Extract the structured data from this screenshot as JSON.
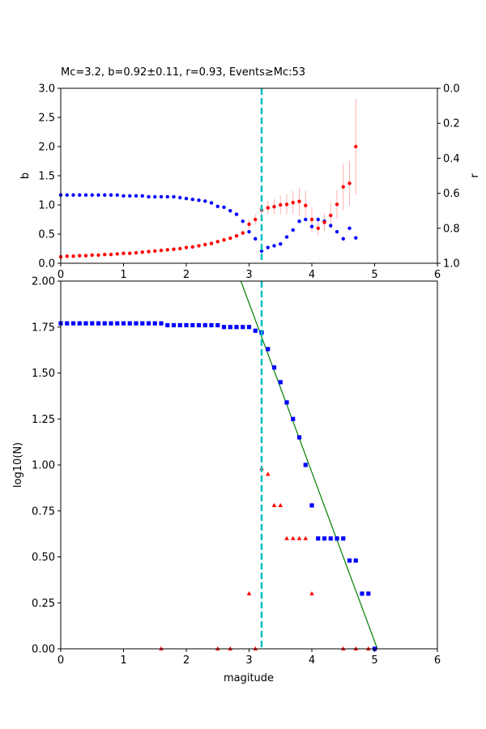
{
  "chart_data": [
    {
      "type": "scatter",
      "title": "Mc=3.2, b=0.92±0.11, r=0.93, Events≥Mc:53",
      "xlabel": "",
      "ylabel": "b",
      "ylabel_right": "r",
      "xlim": [
        0,
        6
      ],
      "ylim": [
        0,
        3
      ],
      "ylim_right": [
        1,
        0
      ],
      "xticks": [
        "0",
        "1",
        "2",
        "3",
        "4",
        "5",
        "6"
      ],
      "yticks": [
        "0.0",
        "0.5",
        "1.0",
        "1.5",
        "2.0",
        "2.5",
        "3.0"
      ],
      "yticks_right": [
        "1.0",
        "0.8",
        "0.6",
        "0.4",
        "0.2",
        "0.0"
      ],
      "mc_line": 3.2,
      "colors": {
        "b": "#ff0000",
        "r": "#0000ff",
        "errorbar": "#ffb0b0",
        "mc": "#00bfbf"
      },
      "series": [
        {
          "name": "",
          "axis": "left",
          "x": [
            0.0,
            0.1,
            0.2,
            0.3,
            0.4,
            0.5,
            0.6,
            0.7,
            0.8,
            0.9,
            1.0,
            1.1,
            1.2,
            1.3,
            1.4,
            1.5,
            1.6,
            1.7,
            1.8,
            1.9,
            2.0,
            2.1,
            2.2,
            2.3,
            2.4,
            2.5,
            2.6,
            2.7,
            2.8,
            2.9,
            3.0,
            3.1,
            3.2,
            3.3,
            3.4,
            3.5,
            3.6,
            3.7,
            3.8,
            3.9,
            4.0,
            4.1,
            4.2,
            4.3,
            4.4,
            4.5,
            4.6,
            4.7
          ],
          "y": [
            0.11,
            0.12,
            0.12,
            0.13,
            0.13,
            0.14,
            0.14,
            0.15,
            0.15,
            0.16,
            0.17,
            0.17,
            0.18,
            0.19,
            0.2,
            0.21,
            0.22,
            0.23,
            0.24,
            0.25,
            0.27,
            0.28,
            0.3,
            0.32,
            0.34,
            0.37,
            0.4,
            0.43,
            0.47,
            0.52,
            0.67,
            0.75,
            0.91,
            0.95,
            0.97,
            1.0,
            1.01,
            1.04,
            1.06,
            0.99,
            0.75,
            0.6,
            0.7,
            0.82,
            1.01,
            1.31,
            1.37,
            2.0
          ],
          "err": [
            0.01,
            0.01,
            0.01,
            0.01,
            0.01,
            0.01,
            0.01,
            0.01,
            0.01,
            0.01,
            0.01,
            0.01,
            0.01,
            0.01,
            0.01,
            0.01,
            0.01,
            0.01,
            0.01,
            0.01,
            0.01,
            0.01,
            0.02,
            0.02,
            0.02,
            0.02,
            0.02,
            0.03,
            0.03,
            0.04,
            0.08,
            0.09,
            0.11,
            0.12,
            0.13,
            0.16,
            0.17,
            0.2,
            0.24,
            0.26,
            0.22,
            0.12,
            0.15,
            0.22,
            0.25,
            0.4,
            0.38,
            0.82
          ]
        },
        {
          "name": "",
          "axis": "right",
          "x": [
            0.0,
            0.1,
            0.2,
            0.3,
            0.4,
            0.5,
            0.6,
            0.7,
            0.8,
            0.9,
            1.0,
            1.1,
            1.2,
            1.3,
            1.4,
            1.5,
            1.6,
            1.7,
            1.8,
            1.9,
            2.0,
            2.1,
            2.2,
            2.3,
            2.4,
            2.5,
            2.6,
            2.7,
            2.8,
            2.9,
            3.0,
            3.1,
            3.2,
            3.3,
            3.4,
            3.5,
            3.6,
            3.7,
            3.8,
            3.9,
            4.0,
            4.1,
            4.2,
            4.3,
            4.4,
            4.5,
            4.6,
            4.7
          ],
          "y": [
            0.61,
            0.61,
            0.61,
            0.61,
            0.61,
            0.61,
            0.61,
            0.61,
            0.61,
            0.61,
            0.615,
            0.615,
            0.615,
            0.615,
            0.62,
            0.62,
            0.62,
            0.62,
            0.62,
            0.625,
            0.63,
            0.635,
            0.64,
            0.645,
            0.655,
            0.675,
            0.68,
            0.7,
            0.72,
            0.76,
            0.82,
            0.86,
            0.93,
            0.91,
            0.9,
            0.89,
            0.85,
            0.81,
            0.76,
            0.75,
            0.79,
            0.75,
            0.76,
            0.785,
            0.82,
            0.86,
            0.8,
            0.855
          ]
        }
      ]
    },
    {
      "type": "scatter",
      "title": "",
      "xlabel": "magitude",
      "ylabel": "log10(N)",
      "xlim": [
        0,
        6
      ],
      "ylim": [
        0,
        2
      ],
      "xticks": [
        "0",
        "1",
        "2",
        "3",
        "4",
        "5",
        "6"
      ],
      "yticks": [
        "0.00",
        "0.25",
        "0.50",
        "0.75",
        "1.00",
        "1.25",
        "1.50",
        "1.75",
        "2.00"
      ],
      "mc_line": 3.2,
      "fit_line": {
        "slope": -0.92,
        "intercept": 4.64
      },
      "colors": {
        "cumulative": "#0000ff",
        "noncumulative": "#ff0000",
        "fit": "#008000",
        "mc": "#00bfbf"
      },
      "series": [
        {
          "name": "",
          "marker": "square",
          "x": [
            0.0,
            0.1,
            0.2,
            0.3,
            0.4,
            0.5,
            0.6,
            0.7,
            0.8,
            0.9,
            1.0,
            1.1,
            1.2,
            1.3,
            1.4,
            1.5,
            1.6,
            1.7,
            1.8,
            1.9,
            2.0,
            2.1,
            2.2,
            2.3,
            2.4,
            2.5,
            2.6,
            2.7,
            2.8,
            2.9,
            3.0,
            3.1,
            3.2,
            3.3,
            3.4,
            3.5,
            3.6,
            3.7,
            3.8,
            3.9,
            4.0,
            4.1,
            4.2,
            4.3,
            4.4,
            4.5,
            4.6,
            4.7,
            4.8,
            4.9,
            5.0
          ],
          "y": [
            1.77,
            1.77,
            1.77,
            1.77,
            1.77,
            1.77,
            1.77,
            1.77,
            1.77,
            1.77,
            1.77,
            1.77,
            1.77,
            1.77,
            1.77,
            1.77,
            1.77,
            1.76,
            1.76,
            1.76,
            1.76,
            1.76,
            1.76,
            1.76,
            1.76,
            1.76,
            1.75,
            1.75,
            1.75,
            1.75,
            1.75,
            1.73,
            1.72,
            1.63,
            1.53,
            1.45,
            1.34,
            1.25,
            1.15,
            1.0,
            0.78,
            0.6,
            0.6,
            0.6,
            0.6,
            0.6,
            0.48,
            0.48,
            0.3,
            0.3,
            0.0
          ]
        },
        {
          "name": "",
          "marker": "triangle",
          "x": [
            1.6,
            2.5,
            2.7,
            3.0,
            3.1,
            3.2,
            3.3,
            3.4,
            3.5,
            3.6,
            3.7,
            3.8,
            3.9,
            4.0,
            4.5,
            4.7,
            4.9
          ],
          "y": [
            0.0,
            0.0,
            0.0,
            0.3,
            0.0,
            0.98,
            0.95,
            0.78,
            0.78,
            0.6,
            0.6,
            0.6,
            0.6,
            0.3,
            0.0,
            0.0,
            0.0
          ]
        }
      ]
    }
  ]
}
